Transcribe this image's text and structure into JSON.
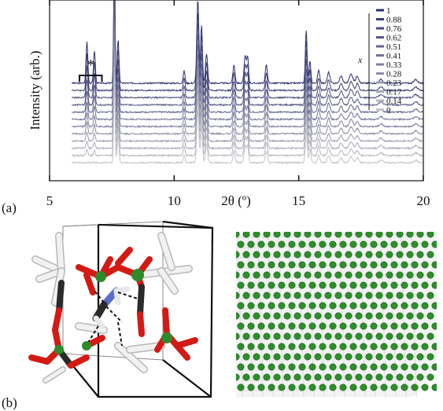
{
  "panel_a": {
    "label": "(a)"
  },
  "panel_b": {
    "label": "(b)"
  },
  "colors": {
    "dark_series": "#2b2f6e",
    "light_series": "#c4c4c8",
    "oxygen": "#d41a14",
    "metal": "#2f8a2c",
    "carbon": "#2a2a2a",
    "hydrogen": "#e8e8e8",
    "nitrogen": "#5b6fc7",
    "lattice_node": "#2d8f2a",
    "lattice_strut": "#e6e6e6"
  },
  "chart_data": {
    "type": "line",
    "xlabel": "2θ (º)",
    "ylabel": "Intensity (arb.)",
    "xlim": [
      5,
      20
    ],
    "xticks": [
      5,
      10,
      15,
      20
    ],
    "ylim": [
      0,
      1
    ],
    "grid": false,
    "legend_title": "x",
    "legend_position": "top-right",
    "annotation": {
      "text": "*",
      "x_range": [
        6.2,
        7.1
      ]
    },
    "peaks": [
      {
        "x": 6.5,
        "height": 0.23,
        "width": 0.05,
        "scales_with_x": true
      },
      {
        "x": 6.8,
        "height": 0.18,
        "width": 0.05,
        "scales_with_x": true
      },
      {
        "x": 7.6,
        "height": 0.7,
        "width": 0.04,
        "scales_with_x": false
      },
      {
        "x": 7.75,
        "height": 0.24,
        "width": 0.05,
        "scales_with_x": false
      },
      {
        "x": 10.4,
        "height": 0.07,
        "width": 0.05,
        "scales_with_x": false
      },
      {
        "x": 10.95,
        "height": 0.46,
        "width": 0.06,
        "scales_with_x": false
      },
      {
        "x": 11.1,
        "height": 0.32,
        "width": 0.05,
        "scales_with_x": false
      },
      {
        "x": 11.3,
        "height": 0.16,
        "width": 0.06,
        "scales_with_x": false
      },
      {
        "x": 12.4,
        "height": 0.1,
        "width": 0.06,
        "scales_with_x": false
      },
      {
        "x": 12.85,
        "height": 0.15,
        "width": 0.06,
        "scales_with_x": false
      },
      {
        "x": 12.95,
        "height": 0.14,
        "width": 0.05,
        "scales_with_x": false
      },
      {
        "x": 13.7,
        "height": 0.1,
        "width": 0.06,
        "scales_with_x": false
      },
      {
        "x": 15.3,
        "height": 0.29,
        "width": 0.05,
        "scales_with_x": false
      },
      {
        "x": 15.45,
        "height": 0.12,
        "width": 0.05,
        "scales_with_x": false
      },
      {
        "x": 15.8,
        "height": 0.07,
        "width": 0.06,
        "scales_with_x": false
      },
      {
        "x": 16.2,
        "height": 0.06,
        "width": 0.07,
        "scales_with_x": false
      },
      {
        "x": 16.7,
        "height": 0.04,
        "width": 0.08,
        "scales_with_x": false
      },
      {
        "x": 17.1,
        "height": 0.05,
        "width": 0.1,
        "scales_with_x": false
      },
      {
        "x": 17.35,
        "height": 0.04,
        "width": 0.08,
        "scales_with_x": false
      },
      {
        "x": 18.3,
        "height": 0.02,
        "width": 0.1,
        "scales_with_x": false
      },
      {
        "x": 19.7,
        "height": 0.02,
        "width": 0.1,
        "scales_with_x": false
      }
    ],
    "series": [
      {
        "name": "1",
        "offset": 0.54
      },
      {
        "name": "0.88",
        "offset": 0.5
      },
      {
        "name": "0.76",
        "offset": 0.46
      },
      {
        "name": "0.62",
        "offset": 0.42
      },
      {
        "name": "0.51",
        "offset": 0.38
      },
      {
        "name": "0.41",
        "offset": 0.34
      },
      {
        "name": "0.33",
        "offset": 0.3
      },
      {
        "name": "0.28",
        "offset": 0.26
      },
      {
        "name": "0.23",
        "offset": 0.22
      },
      {
        "name": "0.17",
        "offset": 0.18
      },
      {
        "name": "0.14",
        "offset": 0.14
      },
      {
        "name": "0",
        "offset": 0.1
      }
    ]
  }
}
